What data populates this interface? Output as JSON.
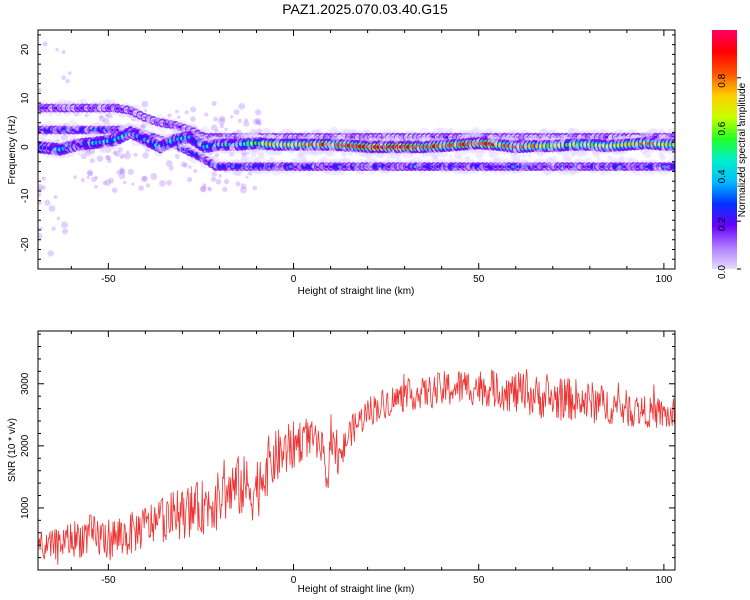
{
  "title": "PAZ1.2025.070.03.40.G15",
  "chart_data": [
    {
      "type": "heatmap",
      "xlabel": "Height of straight line (km)",
      "ylabel": "Frequency (Hz)",
      "xlim": [
        -69,
        103
      ],
      "ylim": [
        -25,
        24
      ],
      "x_ticks": [
        "-50",
        "0",
        "50",
        "100"
      ],
      "y_ticks": [
        "-20",
        "-10",
        "0",
        "10",
        "20"
      ],
      "colorbar": {
        "label": "Normalized spectral amplitude",
        "range": [
          0,
          1
        ],
        "ticks": [
          "0.0",
          "0.2",
          "0.4",
          "0.6",
          "0.8"
        ],
        "colors": [
          "#e6dcff",
          "#ad7bff",
          "#6600ff",
          "#0033ff",
          "#00bbff",
          "#00eecc",
          "#22ff22",
          "#ccff00",
          "#ffcc00",
          "#ff5500",
          "#ff0000",
          "#ff0066"
        ]
      },
      "ridge": [
        {
          "x": -69,
          "y": 0.0,
          "a": 0.4
        },
        {
          "x": -63,
          "y": -0.5,
          "a": 0.45
        },
        {
          "x": -58,
          "y": 0.5,
          "a": 0.4
        },
        {
          "x": -52,
          "y": 1.0,
          "a": 0.5
        },
        {
          "x": -48,
          "y": 1.5,
          "a": 0.5
        },
        {
          "x": -44,
          "y": 3.0,
          "a": 0.45
        },
        {
          "x": -40,
          "y": 1.5,
          "a": 0.5
        },
        {
          "x": -36,
          "y": 0.0,
          "a": 0.45
        },
        {
          "x": -32,
          "y": 1.5,
          "a": 0.5
        },
        {
          "x": -28,
          "y": 2.0,
          "a": 0.45
        },
        {
          "x": -24,
          "y": 0.0,
          "a": 0.45
        },
        {
          "x": -20,
          "y": 0.5,
          "a": 0.5
        },
        {
          "x": -15,
          "y": 0.5,
          "a": 0.55
        },
        {
          "x": -10,
          "y": 0.8,
          "a": 0.7
        },
        {
          "x": -5,
          "y": 0.5,
          "a": 0.75
        },
        {
          "x": 0,
          "y": 0.5,
          "a": 0.8
        },
        {
          "x": 5,
          "y": 0.5,
          "a": 0.85
        },
        {
          "x": 10,
          "y": 0.5,
          "a": 0.9
        },
        {
          "x": 15,
          "y": 0.3,
          "a": 0.95
        },
        {
          "x": 20,
          "y": 0.0,
          "a": 1.0
        },
        {
          "x": 25,
          "y": 0.0,
          "a": 1.0
        },
        {
          "x": 30,
          "y": 0.0,
          "a": 1.0
        },
        {
          "x": 35,
          "y": 0.0,
          "a": 0.95
        },
        {
          "x": 40,
          "y": 0.2,
          "a": 0.9
        },
        {
          "x": 45,
          "y": 0.5,
          "a": 0.9
        },
        {
          "x": 50,
          "y": 0.8,
          "a": 0.95
        },
        {
          "x": 55,
          "y": 0.5,
          "a": 0.9
        },
        {
          "x": 60,
          "y": 0.0,
          "a": 0.85
        },
        {
          "x": 65,
          "y": 0.2,
          "a": 0.8
        },
        {
          "x": 70,
          "y": 0.2,
          "a": 0.75
        },
        {
          "x": 75,
          "y": 0.5,
          "a": 0.7
        },
        {
          "x": 80,
          "y": 0.5,
          "a": 0.75
        },
        {
          "x": 85,
          "y": 0.2,
          "a": 0.75
        },
        {
          "x": 90,
          "y": 0.5,
          "a": 0.75
        },
        {
          "x": 95,
          "y": 0.8,
          "a": 0.8
        },
        {
          "x": 100,
          "y": 0.5,
          "a": 0.75
        },
        {
          "x": 103,
          "y": 0.5,
          "a": 0.7
        }
      ],
      "secondary_ridge": [
        {
          "x": -48,
          "y": 8.0,
          "a": 0.25
        },
        {
          "x": -44,
          "y": 7.5,
          "a": 0.25
        },
        {
          "x": -40,
          "y": 6.0,
          "a": 0.25
        },
        {
          "x": -36,
          "y": 5.0,
          "a": 0.25
        },
        {
          "x": -32,
          "y": 4.5,
          "a": 0.25
        },
        {
          "x": -28,
          "y": 3.5,
          "a": 0.25
        },
        {
          "x": -24,
          "y": 2.0,
          "a": 0.25
        }
      ],
      "descending_ridge": [
        {
          "x": -44,
          "y": 3.5,
          "a": 0.35
        },
        {
          "x": -40,
          "y": 2.5,
          "a": 0.35
        },
        {
          "x": -36,
          "y": 1.5,
          "a": 0.35
        },
        {
          "x": -32,
          "y": 0.5,
          "a": 0.35
        },
        {
          "x": -28,
          "y": -1.0,
          "a": 0.35
        },
        {
          "x": -24,
          "y": -2.5,
          "a": 0.35
        },
        {
          "x": -21,
          "y": -4.0,
          "a": 0.35
        }
      ]
    },
    {
      "type": "line",
      "xlabel": "Height of straight line (km)",
      "ylabel": "SNR (10 * v/v)",
      "xlim": [
        -69,
        103
      ],
      "ylim": [
        0,
        3850
      ],
      "x_ticks": [
        "-50",
        "0",
        "50",
        "100"
      ],
      "y_ticks": [
        "1000",
        "2000",
        "3000"
      ],
      "color": "#ee3333",
      "series": [
        {
          "x": [
            -69,
            -65,
            -60,
            -55,
            -50,
            -45,
            -40,
            -35,
            -30,
            -25,
            -20,
            -15,
            -10,
            -8,
            -5,
            0,
            3,
            5,
            8,
            9,
            10,
            12,
            15,
            20,
            25,
            30,
            35,
            40,
            45,
            50,
            55,
            60,
            65,
            70,
            75,
            80,
            85,
            90,
            95,
            100,
            103
          ],
          "y": [
            300,
            400,
            500,
            550,
            500,
            550,
            700,
            850,
            900,
            1000,
            1150,
            1350,
            1300,
            1600,
            1800,
            2000,
            2150,
            2100,
            1900,
            1200,
            2300,
            1700,
            2200,
            2550,
            2700,
            2800,
            2850,
            2900,
            2950,
            2950,
            2900,
            2850,
            2800,
            2750,
            2750,
            2700,
            2650,
            2600,
            2550,
            2500,
            2450
          ],
          "noise": [
            200,
            250,
            300,
            350,
            350,
            350,
            350,
            400,
            400,
            450,
            450,
            500,
            550,
            500,
            450,
            400,
            350,
            300,
            300,
            300,
            300,
            300,
            250,
            250,
            250,
            250,
            250,
            300,
            300,
            300,
            300,
            350,
            350,
            350,
            350,
            350,
            300,
            300,
            250,
            250,
            250
          ]
        }
      ]
    }
  ]
}
